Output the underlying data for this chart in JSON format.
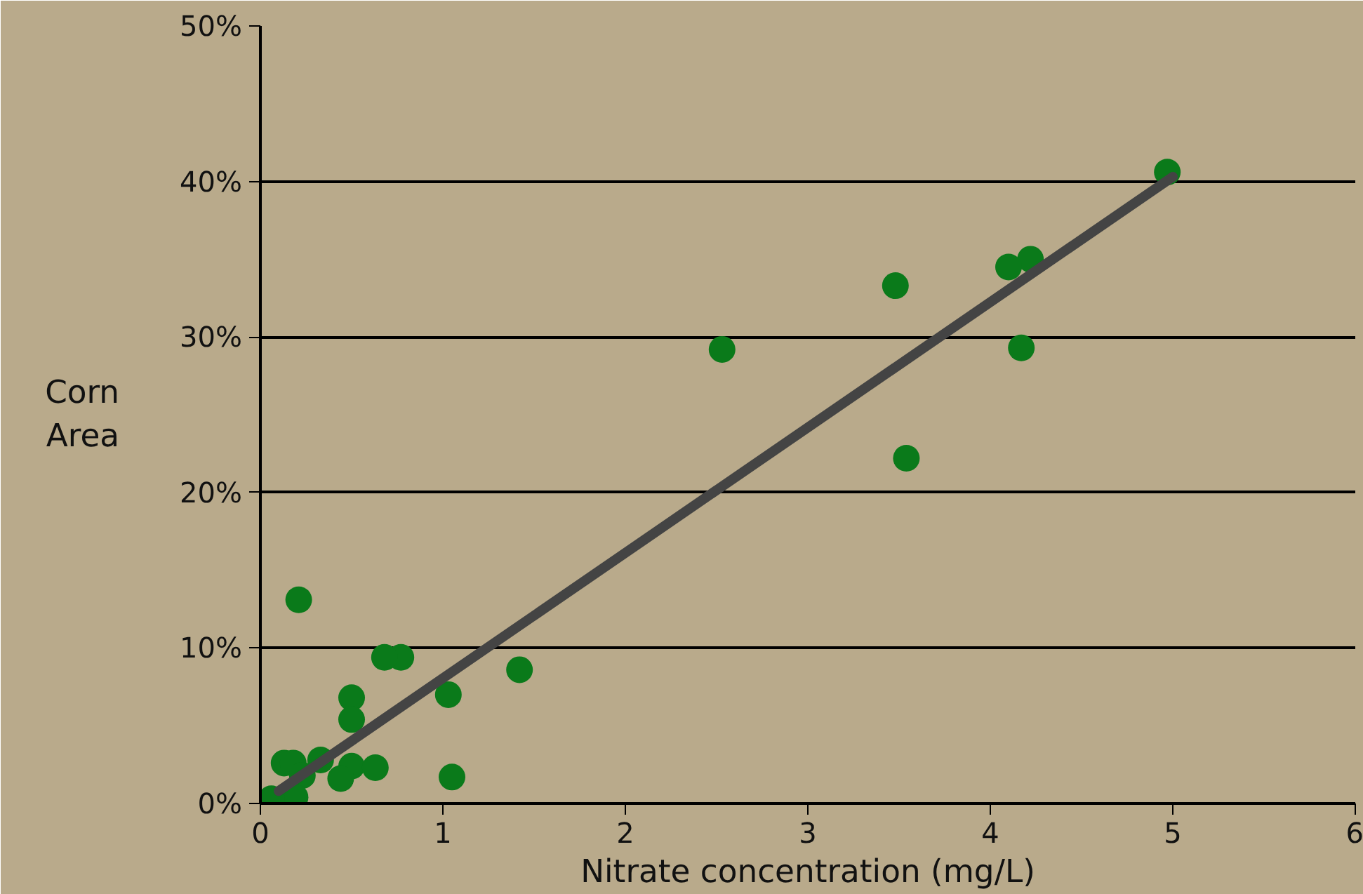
{
  "chart_data": {
    "type": "scatter",
    "xlabel": "Nitrate concentration (mg/L)",
    "ylabel": "Corn Area",
    "xlim": [
      0,
      6
    ],
    "xticks": [
      0,
      1,
      2,
      3,
      4,
      5,
      6
    ],
    "ylim": [
      0,
      50
    ],
    "yticks": [
      {
        "value": 0,
        "label": "0%"
      },
      {
        "value": 10,
        "label": "10%"
      },
      {
        "value": 20,
        "label": "20%"
      },
      {
        "value": 30,
        "label": "30%"
      },
      {
        "value": 40,
        "label": "40%"
      },
      {
        "value": 50,
        "label": "50%"
      }
    ],
    "grid": "y",
    "series": [
      {
        "marker": "circle",
        "color": "#0a7a1a",
        "x": [
          4.97,
          4.22,
          4.1,
          4.17,
          3.48,
          3.54,
          2.53,
          1.42,
          1.03,
          1.05,
          0.77,
          0.68,
          0.5,
          0.5,
          0.21,
          0.13,
          0.18,
          0.33,
          0.5,
          0.63,
          0.44,
          0.23,
          0.19,
          0.06
        ],
        "values": [
          40.6,
          35.0,
          34.5,
          29.3,
          33.3,
          22.2,
          29.2,
          8.6,
          7.0,
          1.7,
          9.4,
          9.4,
          6.8,
          5.4,
          13.1,
          2.6,
          2.6,
          2.8,
          2.4,
          2.3,
          1.6,
          1.8,
          0.4,
          0.3
        ]
      },
      {
        "type": "line",
        "color": "#444444",
        "x": [
          0.1,
          5.0
        ],
        "values": [
          0.8,
          40.3
        ]
      }
    ]
  }
}
